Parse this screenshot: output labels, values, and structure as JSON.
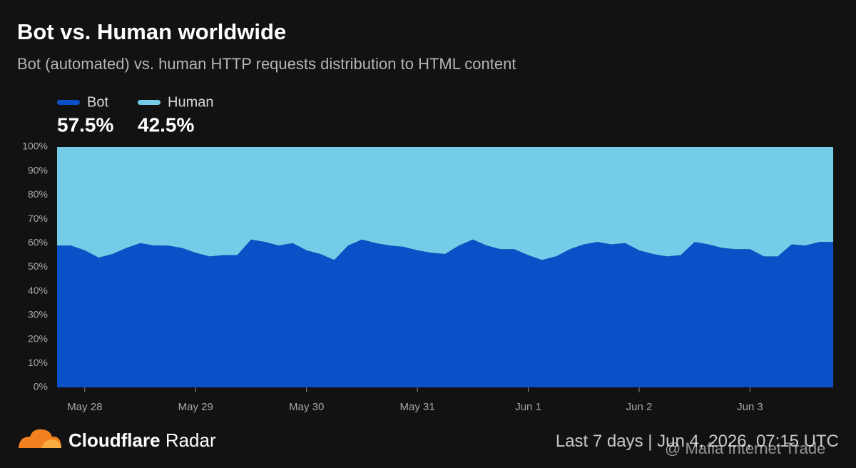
{
  "chart_data": {
    "type": "stacked_area",
    "title": "Bot vs. Human worldwide",
    "subtitle": "Bot (automated) vs. human HTTP requests distribution to HTML content",
    "categories": [
      null,
      null,
      "May 28",
      null,
      null,
      null,
      null,
      null,
      null,
      null,
      "May 29",
      null,
      null,
      null,
      null,
      null,
      null,
      null,
      "May 30",
      null,
      null,
      null,
      null,
      null,
      null,
      null,
      "May 31",
      null,
      null,
      null,
      null,
      null,
      null,
      null,
      "Jun 1",
      null,
      null,
      null,
      null,
      null,
      null,
      null,
      "Jun 2",
      null,
      null,
      null,
      null,
      null,
      null,
      null,
      "Jun 3",
      null,
      null,
      null,
      null,
      null,
      null
    ],
    "series": [
      {
        "name": "Bot",
        "color": "#0a50c6",
        "share": 57.5,
        "share_label": "57.5%",
        "values": [
          59,
          59,
          57,
          54,
          55.5,
          58,
          60,
          59,
          59,
          58,
          56,
          54.5,
          55,
          55,
          61.5,
          60.5,
          59,
          60,
          57,
          55.5,
          53,
          59,
          61.5,
          60,
          59,
          58.5,
          57,
          56,
          55.5,
          59,
          61.5,
          59,
          57.5,
          57.5,
          55,
          53,
          54.5,
          57.5,
          59.5,
          60.5,
          59.5,
          60,
          57,
          55.5,
          54.5,
          55,
          60.5,
          59.5,
          58,
          57.5,
          57.5,
          54.5,
          54.5,
          59.5,
          59,
          60.5,
          60.5
        ]
      },
      {
        "name": "Human",
        "color": "#74cde8",
        "share": 42.5,
        "share_label": "42.5%",
        "values": [
          41,
          41,
          43,
          46,
          44.5,
          42,
          40,
          41,
          41,
          42,
          44,
          45.5,
          45,
          45,
          38.5,
          39.5,
          41,
          40,
          43,
          44.5,
          47,
          41,
          38.5,
          40,
          41,
          41.5,
          43,
          44,
          44.5,
          41,
          38.5,
          41,
          42.5,
          42.5,
          45,
          47,
          45.5,
          42.5,
          40.5,
          39.5,
          40.5,
          40,
          43,
          44.5,
          45.5,
          45,
          39.5,
          40.5,
          42,
          42.5,
          42.5,
          45.5,
          45.5,
          40.5,
          41,
          39.5,
          39.5
        ]
      }
    ],
    "ylim": [
      0,
      100
    ],
    "yticks": [
      {
        "value": 0,
        "label": "0%"
      },
      {
        "value": 10,
        "label": "10%"
      },
      {
        "value": 20,
        "label": "20%"
      },
      {
        "value": 30,
        "label": "30%"
      },
      {
        "value": 40,
        "label": "40%"
      },
      {
        "value": 50,
        "label": "50%"
      },
      {
        "value": 60,
        "label": "60%"
      },
      {
        "value": 70,
        "label": "70%"
      },
      {
        "value": 80,
        "label": "80%"
      },
      {
        "value": 90,
        "label": "90%"
      },
      {
        "value": 100,
        "label": "100%"
      }
    ],
    "brand": "Cloudflare",
    "product": "Radar",
    "period": "Last 7 days",
    "timestamp": "Jun 4, 2026, 07:15 UTC",
    "watermark": "@ Mafia Internet Trade"
  }
}
